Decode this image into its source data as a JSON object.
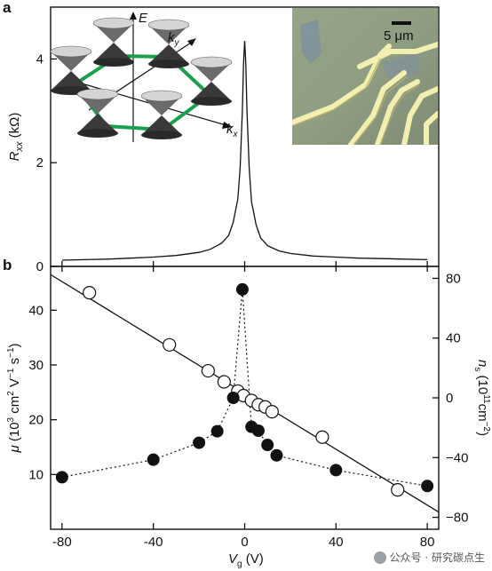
{
  "chart_data": [
    {
      "type": "line",
      "panel": "a",
      "ylabel": "R_xx (kΩ)",
      "xlim": [
        -85,
        85
      ],
      "ylim": [
        0,
        5
      ],
      "yticks": [
        0,
        2,
        4
      ],
      "series": [
        {
          "x": [
            -80,
            -70,
            -60,
            -50,
            -40,
            -30,
            -20,
            -15,
            -10,
            -7,
            -5,
            -3,
            -2,
            -1,
            -0.5,
            0,
            0.5,
            1,
            2,
            3,
            5,
            7,
            10,
            15,
            20,
            30,
            40,
            50,
            60,
            70,
            80
          ],
          "y": [
            0.12,
            0.13,
            0.14,
            0.16,
            0.18,
            0.21,
            0.27,
            0.33,
            0.45,
            0.6,
            0.85,
            1.3,
            1.9,
            3.0,
            3.9,
            4.35,
            3.9,
            3.0,
            1.9,
            1.25,
            0.8,
            0.55,
            0.4,
            0.3,
            0.25,
            0.2,
            0.18,
            0.16,
            0.15,
            0.14,
            0.13
          ]
        }
      ],
      "inset_lattice": {
        "axis_labels": [
          "E",
          "k",
          "y",
          "k",
          "x"
        ]
      },
      "inset_micrograph": {
        "scale_bar": "5 μm"
      }
    },
    {
      "type": "scatter",
      "panel": "b",
      "xlabel": "V_g (V)",
      "xticks": [
        -80,
        -40,
        0,
        40,
        80
      ],
      "xlim": [
        -85,
        85
      ],
      "ylabel_left": "μ (10³ cm² V⁻¹ s⁻¹)",
      "ylim_left": [
        0,
        48
      ],
      "yticks_left": [
        10,
        20,
        30,
        40
      ],
      "ylabel_right": "n_s (10¹¹cm⁻²)",
      "ylim_right": [
        -88,
        88
      ],
      "yticks_right": [
        -80,
        -40,
        0,
        40,
        80
      ],
      "series": [
        {
          "marker": "filled-circle",
          "linestyle": "dotted",
          "axis": "left",
          "x": [
            -80,
            -40,
            -20,
            -12,
            -5,
            -1,
            3,
            6,
            10,
            14,
            40,
            80
          ],
          "y": [
            9.5,
            12.7,
            15.8,
            17.9,
            24.0,
            43.8,
            18.7,
            18.0,
            15.4,
            13.5,
            10.8,
            7.9
          ]
        },
        {
          "marker": "open-circle",
          "axis": "right",
          "x": [
            -68,
            -33,
            -16,
            -9,
            -3,
            -0.5,
            3,
            6,
            9,
            12,
            34,
            67
          ],
          "y": [
            70.4,
            35.5,
            18.1,
            10.7,
            4.5,
            1.5,
            -1.8,
            -4.6,
            -6.1,
            -9.3,
            -26.3,
            -61.6
          ]
        },
        {
          "linestyle": "solid",
          "axis": "right",
          "fit": "linear",
          "x": [
            -85,
            85
          ],
          "y": [
            82.5,
            -76.5
          ]
        }
      ]
    }
  ],
  "watermark": "公众号 · 研究碳点生"
}
